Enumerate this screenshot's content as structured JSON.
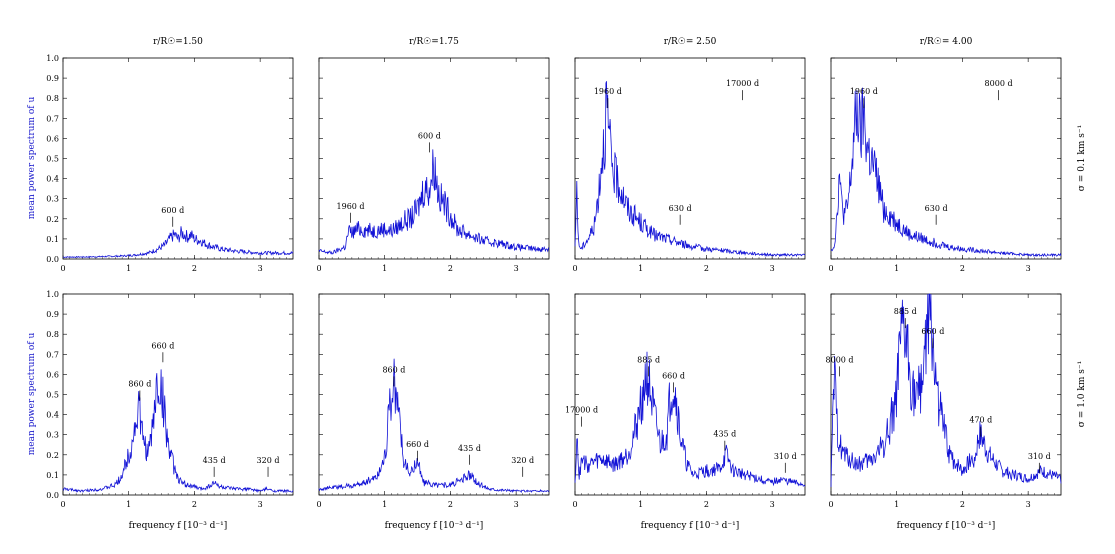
{
  "figure": {
    "xlabel": "frequency f [10⁻³ d⁻¹]",
    "ylabel": "mean power spectrum of u",
    "row_labels": [
      "σ = 0.1 km s⁻¹",
      "σ = 1.0 km s⁻¹"
    ],
    "colors": {
      "line": "#1212d6",
      "axis": "#000000"
    }
  },
  "chart_data": [
    {
      "type": "line",
      "row": 0,
      "col": 0,
      "title": "r/R☉=1.50",
      "xlim": [
        0,
        3.5
      ],
      "ylim": [
        0,
        1.0
      ],
      "x_ticks": [
        "0",
        "1",
        "2",
        "3"
      ],
      "y_ticks": [
        "0.0",
        "0.1",
        "0.2",
        "0.3",
        "0.4",
        "0.5",
        "0.6",
        "0.7",
        "0.8",
        "0.9",
        "1.0"
      ],
      "series": [
        {
          "name": "spectrum",
          "x": [
            0,
            0.3,
            0.6,
            0.9,
            1.1,
            1.3,
            1.45,
            1.55,
            1.6,
            1.65,
            1.7,
            1.75,
            1.8,
            1.85,
            1.9,
            1.95,
            2.0,
            2.1,
            2.2,
            2.4,
            2.6,
            2.8,
            3.0,
            3.2,
            3.5
          ],
          "y": [
            0.01,
            0.01,
            0.012,
            0.015,
            0.02,
            0.03,
            0.05,
            0.07,
            0.09,
            0.11,
            0.12,
            0.1,
            0.13,
            0.12,
            0.11,
            0.12,
            0.1,
            0.09,
            0.07,
            0.05,
            0.04,
            0.035,
            0.03,
            0.03,
            0.03
          ]
        }
      ],
      "annotations": [
        {
          "label": "600 d",
          "x": 1.67,
          "y": 0.23
        }
      ]
    },
    {
      "type": "line",
      "row": 0,
      "col": 1,
      "title": "r/R☉=1.75",
      "xlim": [
        0,
        3.5
      ],
      "ylim": [
        0,
        1.0
      ],
      "x_ticks": [
        "0",
        "1",
        "2",
        "3"
      ],
      "y_ticks": [],
      "series": [
        {
          "name": "spectrum",
          "x": [
            0,
            0.2,
            0.4,
            0.45,
            0.5,
            0.6,
            0.8,
            1.0,
            1.1,
            1.2,
            1.3,
            1.4,
            1.5,
            1.55,
            1.6,
            1.65,
            1.7,
            1.75,
            1.8,
            1.85,
            1.9,
            2.0,
            2.1,
            2.3,
            2.5,
            2.7,
            3.0,
            3.3,
            3.5
          ],
          "y": [
            0.04,
            0.03,
            0.06,
            0.14,
            0.13,
            0.15,
            0.14,
            0.15,
            0.14,
            0.16,
            0.19,
            0.2,
            0.25,
            0.3,
            0.36,
            0.34,
            0.38,
            0.48,
            0.36,
            0.3,
            0.28,
            0.22,
            0.15,
            0.12,
            0.09,
            0.08,
            0.06,
            0.05,
            0.05
          ]
        }
      ],
      "annotations": [
        {
          "label": "1960 d",
          "x": 0.48,
          "y": 0.25
        },
        {
          "label": "600 d",
          "x": 1.68,
          "y": 0.6
        }
      ]
    },
    {
      "type": "line",
      "row": 0,
      "col": 2,
      "title": "r/R☉= 2.50",
      "xlim": [
        0,
        3.5
      ],
      "ylim": [
        0,
        1.0
      ],
      "x_ticks": [
        "0",
        "1",
        "2",
        "3"
      ],
      "y_ticks": [],
      "series": [
        {
          "name": "spectrum",
          "x": [
            0,
            0.03,
            0.05,
            0.08,
            0.1,
            0.15,
            0.2,
            0.3,
            0.38,
            0.42,
            0.45,
            0.48,
            0.5,
            0.55,
            0.6,
            0.7,
            0.8,
            1.0,
            1.2,
            1.4,
            1.6,
            1.8,
            2.0,
            2.3,
            2.6,
            3.0,
            3.3,
            3.5
          ],
          "y": [
            0.05,
            0.4,
            0.08,
            0.06,
            0.05,
            0.08,
            0.1,
            0.17,
            0.4,
            0.55,
            0.6,
            0.8,
            0.65,
            0.5,
            0.42,
            0.35,
            0.25,
            0.18,
            0.12,
            0.1,
            0.08,
            0.06,
            0.05,
            0.04,
            0.03,
            0.02,
            0.02,
            0.02
          ]
        }
      ],
      "annotations": [
        {
          "label": "1960 d",
          "x": 0.5,
          "y": 0.82
        },
        {
          "label": "630 d",
          "x": 1.6,
          "y": 0.24
        },
        {
          "label": "17000 d",
          "x": 2.55,
          "y": 0.86
        }
      ]
    },
    {
      "type": "line",
      "row": 0,
      "col": 3,
      "title": "r/R☉= 4.00",
      "xlim": [
        0,
        3.5
      ],
      "ylim": [
        0,
        1.0
      ],
      "x_ticks": [
        "0",
        "1",
        "2",
        "3"
      ],
      "y_ticks": [],
      "series": [
        {
          "name": "spectrum",
          "x": [
            0,
            0.05,
            0.1,
            0.12,
            0.15,
            0.2,
            0.25,
            0.3,
            0.35,
            0.4,
            0.45,
            0.5,
            0.55,
            0.6,
            0.7,
            0.8,
            1.0,
            1.2,
            1.4,
            1.6,
            1.8,
            2.0,
            2.3,
            2.6,
            3.0,
            3.3,
            3.5
          ],
          "y": [
            0.05,
            0.06,
            0.25,
            0.45,
            0.3,
            0.22,
            0.25,
            0.4,
            0.6,
            0.75,
            0.6,
            0.72,
            0.55,
            0.5,
            0.4,
            0.25,
            0.18,
            0.12,
            0.1,
            0.08,
            0.06,
            0.05,
            0.04,
            0.03,
            0.02,
            0.02,
            0.02
          ]
        }
      ],
      "annotations": [
        {
          "label": "1960 d",
          "x": 0.5,
          "y": 0.82
        },
        {
          "label": "630 d",
          "x": 1.6,
          "y": 0.24
        },
        {
          "label": "8000 d",
          "x": 2.55,
          "y": 0.86
        }
      ]
    },
    {
      "type": "line",
      "row": 1,
      "col": 0,
      "title": "",
      "xlim": [
        0,
        3.5
      ],
      "ylim": [
        0,
        1.0
      ],
      "x_ticks": [
        "0",
        "1",
        "2",
        "3"
      ],
      "y_ticks": [
        "0.0",
        "0.1",
        "0.2",
        "0.3",
        "0.4",
        "0.5",
        "0.6",
        "0.7",
        "0.8",
        "0.9",
        "1.0"
      ],
      "series": [
        {
          "name": "spectrum",
          "x": [
            0,
            0.3,
            0.6,
            0.8,
            0.9,
            1.0,
            1.08,
            1.15,
            1.2,
            1.25,
            1.3,
            1.35,
            1.4,
            1.45,
            1.5,
            1.55,
            1.6,
            1.7,
            1.8,
            2.0,
            2.1,
            2.2,
            2.3,
            2.4,
            2.6,
            2.8,
            3.0,
            3.1,
            3.2,
            3.5
          ],
          "y": [
            0.03,
            0.02,
            0.03,
            0.05,
            0.1,
            0.2,
            0.3,
            0.45,
            0.3,
            0.25,
            0.2,
            0.3,
            0.45,
            0.57,
            0.5,
            0.4,
            0.25,
            0.12,
            0.06,
            0.04,
            0.03,
            0.04,
            0.06,
            0.04,
            0.03,
            0.03,
            0.02,
            0.03,
            0.02,
            0.02
          ]
        }
      ],
      "annotations": [
        {
          "label": "860 d",
          "x": 1.17,
          "y": 0.54
        },
        {
          "label": "660 d",
          "x": 1.52,
          "y": 0.73
        },
        {
          "label": "435 d",
          "x": 2.3,
          "y": 0.16
        },
        {
          "label": "320 d",
          "x": 3.12,
          "y": 0.16
        }
      ]
    },
    {
      "type": "line",
      "row": 1,
      "col": 1,
      "title": "",
      "xlim": [
        0,
        3.5
      ],
      "ylim": [
        0,
        1.0
      ],
      "x_ticks": [
        "0",
        "1",
        "2",
        "3"
      ],
      "y_ticks": [],
      "series": [
        {
          "name": "spectrum",
          "x": [
            0,
            0.3,
            0.6,
            0.8,
            0.9,
            1.0,
            1.05,
            1.1,
            1.15,
            1.2,
            1.25,
            1.3,
            1.4,
            1.45,
            1.5,
            1.55,
            1.6,
            1.8,
            2.0,
            2.2,
            2.3,
            2.4,
            2.6,
            3.0,
            3.5
          ],
          "y": [
            0.03,
            0.04,
            0.05,
            0.08,
            0.1,
            0.2,
            0.35,
            0.5,
            0.55,
            0.45,
            0.3,
            0.15,
            0.1,
            0.15,
            0.18,
            0.1,
            0.06,
            0.05,
            0.05,
            0.08,
            0.1,
            0.06,
            0.03,
            0.02,
            0.02
          ]
        }
      ],
      "annotations": [
        {
          "label": "860 d",
          "x": 1.14,
          "y": 0.61
        },
        {
          "label": "660 d",
          "x": 1.5,
          "y": 0.24
        },
        {
          "label": "435 d",
          "x": 2.29,
          "y": 0.22
        },
        {
          "label": "320 d",
          "x": 3.1,
          "y": 0.16
        }
      ]
    },
    {
      "type": "line",
      "row": 1,
      "col": 2,
      "title": "",
      "xlim": [
        0,
        3.5
      ],
      "ylim": [
        0,
        1.0
      ],
      "x_ticks": [
        "0",
        "1",
        "2",
        "3"
      ],
      "y_ticks": [],
      "series": [
        {
          "name": "spectrum",
          "x": [
            0,
            0.03,
            0.06,
            0.1,
            0.2,
            0.4,
            0.6,
            0.8,
            0.9,
            1.0,
            1.05,
            1.1,
            1.15,
            1.2,
            1.3,
            1.4,
            1.45,
            1.5,
            1.55,
            1.6,
            1.7,
            1.8,
            2.0,
            2.2,
            2.3,
            2.4,
            2.6,
            2.8,
            3.0,
            3.1,
            3.2,
            3.5
          ],
          "y": [
            0.05,
            0.35,
            0.08,
            0.17,
            0.15,
            0.18,
            0.15,
            0.2,
            0.3,
            0.45,
            0.55,
            0.6,
            0.5,
            0.4,
            0.25,
            0.3,
            0.5,
            0.55,
            0.45,
            0.3,
            0.15,
            0.1,
            0.12,
            0.13,
            0.2,
            0.12,
            0.1,
            0.08,
            0.06,
            0.08,
            0.07,
            0.05
          ]
        }
      ],
      "annotations": [
        {
          "label": "17000 d",
          "x": 0.1,
          "y": 0.41
        },
        {
          "label": "885 d",
          "x": 1.12,
          "y": 0.66
        },
        {
          "label": "660 d",
          "x": 1.5,
          "y": 0.58
        },
        {
          "label": "435 d",
          "x": 2.28,
          "y": 0.29
        },
        {
          "label": "310 d",
          "x": 3.2,
          "y": 0.18
        }
      ]
    },
    {
      "type": "line",
      "row": 1,
      "col": 3,
      "title": "",
      "xlim": [
        0,
        3.5
      ],
      "ylim": [
        0,
        1.0
      ],
      "x_ticks": [
        "0",
        "1",
        "2",
        "3"
      ],
      "y_ticks": [],
      "series": [
        {
          "name": "spectrum",
          "x": [
            0,
            0.05,
            0.1,
            0.2,
            0.4,
            0.6,
            0.8,
            0.9,
            1.0,
            1.05,
            1.1,
            1.15,
            1.2,
            1.3,
            1.4,
            1.45,
            1.5,
            1.55,
            1.6,
            1.7,
            1.8,
            2.0,
            2.2,
            2.25,
            2.3,
            2.4,
            2.6,
            2.8,
            3.0,
            3.1,
            3.2,
            3.5
          ],
          "y": [
            0.05,
            0.6,
            0.3,
            0.2,
            0.15,
            0.17,
            0.25,
            0.35,
            0.5,
            0.7,
            0.8,
            0.75,
            0.6,
            0.45,
            0.6,
            0.85,
            0.9,
            0.75,
            0.55,
            0.35,
            0.2,
            0.12,
            0.2,
            0.3,
            0.28,
            0.2,
            0.12,
            0.1,
            0.08,
            0.1,
            0.12,
            0.08
          ]
        }
      ],
      "annotations": [
        {
          "label": "8000 d",
          "x": 0.13,
          "y": 0.66
        },
        {
          "label": "885 d",
          "x": 1.13,
          "y": 0.9
        },
        {
          "label": "660 d",
          "x": 1.55,
          "y": 0.8
        },
        {
          "label": "470 d",
          "x": 2.28,
          "y": 0.36
        },
        {
          "label": "310 d",
          "x": 3.17,
          "y": 0.18
        }
      ]
    }
  ]
}
